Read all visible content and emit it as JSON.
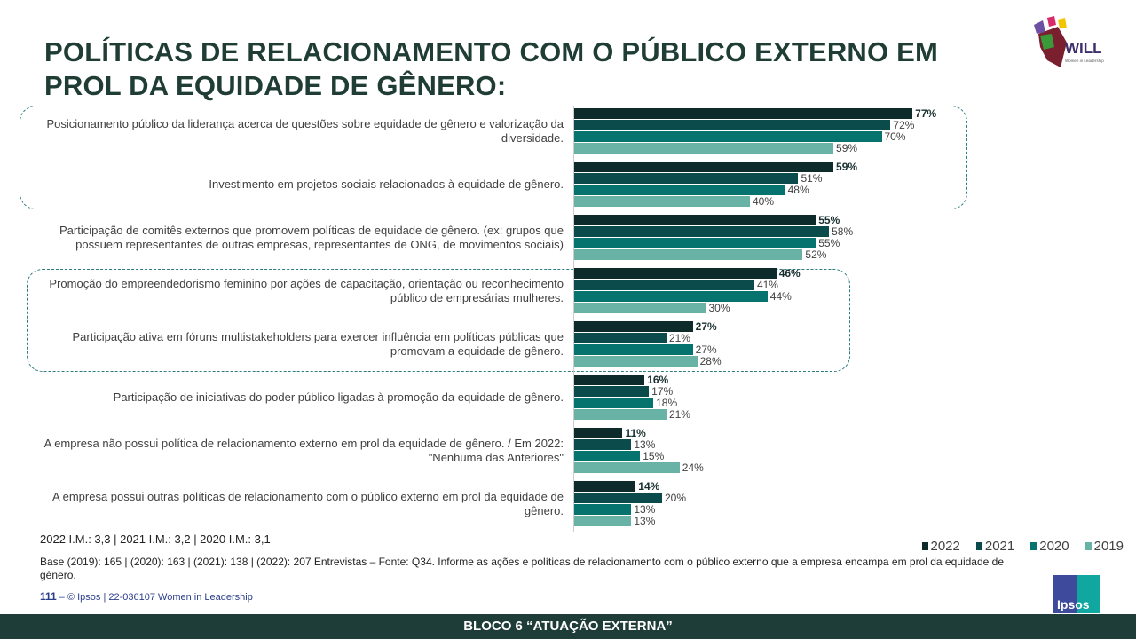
{
  "title": "POLÍTICAS DE RELACIONAMENTO COM O PÚBLICO EXTERNO EM PROL DA EQUIDADE DE GÊNERO:",
  "logo": {
    "text": "WILL",
    "subtitle": "Women in Leadership in Latin America"
  },
  "colors": {
    "2022": "#0e2b2b",
    "2021": "#0b4b4b",
    "2020": "#07736f",
    "2019": "#68b2a6"
  },
  "chart_data": {
    "type": "bar",
    "orientation": "horizontal",
    "series_names": [
      "2022",
      "2021",
      "2020",
      "2019"
    ],
    "categories": [
      "Posicionamento público da liderança acerca de questões sobre equidade de gênero e valorização da diversidade.",
      "Investimento em projetos sociais relacionados à equidade de gênero.",
      "Participação de comitês externos que promovem políticas de equidade de gênero. (ex: grupos que possuem representantes de outras empresas, representantes de ONG, de movimentos sociais)",
      "Promoção do empreendedorismo feminino por ações de capacitação, orientação ou reconhecimento público de empresárias mulheres.",
      "Participação ativa em fóruns multistakeholders para exercer influência em políticas públicas que promovam a equidade de gênero.",
      "Participação de iniciativas do poder público ligadas à promoção da equidade de gênero.",
      "A empresa não possui política de relacionamento externo em prol da equidade de gênero. / Em 2022: \"Nenhuma das Anteriores\"",
      "A empresa possui outras políticas de relacionamento com o público externo em prol da equidade de gênero."
    ],
    "values": [
      [
        77,
        72,
        70,
        59
      ],
      [
        59,
        51,
        48,
        40
      ],
      [
        55,
        58,
        55,
        52
      ],
      [
        46,
        41,
        44,
        30
      ],
      [
        27,
        21,
        27,
        28
      ],
      [
        16,
        17,
        18,
        21
      ],
      [
        11,
        13,
        15,
        24
      ],
      [
        14,
        20,
        13,
        13
      ]
    ],
    "unit": "%",
    "legend": "bottom-right"
  },
  "im_text": "2022 I.M.: 3,3 | 2021 I.M.: 3,2 | 2020 I.M.: 3,1",
  "base_text": "Base (2019): 165 | (2020): 163  | (2021): 138 | (2022): 207  Entrevistas – Fonte: Q34. Informe as ações e políticas de relacionamento com o público externo que a empresa encampa em prol da equidade de gênero.",
  "page_number": "111",
  "page_dash": " – ",
  "copyright": "© Ipsos | 22-036107 Women in Leadership",
  "ipsos_logo": "Ipsos",
  "footer": "BLOCO 6 “ATUAÇÃO  EXTERNA”"
}
